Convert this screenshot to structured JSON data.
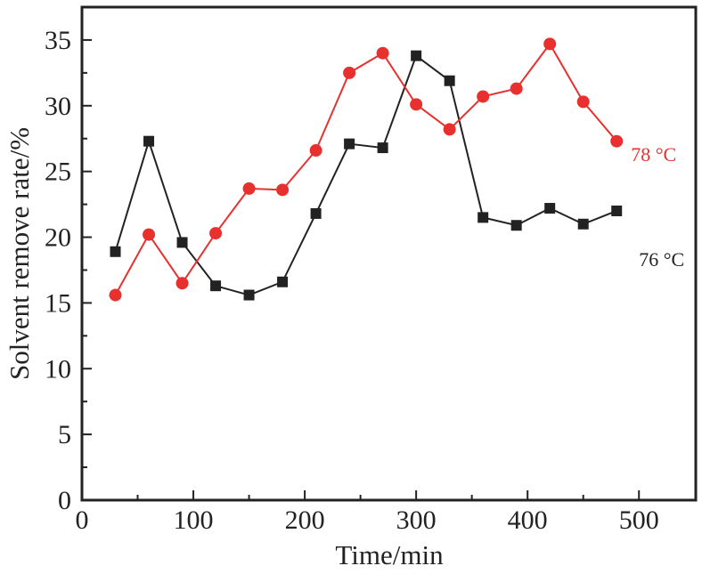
{
  "chart_data": {
    "type": "line",
    "title": "",
    "xlabel": "Time/min",
    "ylabel": "Solvent remove rate/%",
    "xlim": [
      0,
      551
    ],
    "ylim": [
      0,
      37.5
    ],
    "xticks": [
      0,
      100,
      200,
      300,
      400,
      500
    ],
    "xminor": [
      50,
      150,
      250,
      350,
      450
    ],
    "yticks": [
      0,
      5,
      10,
      15,
      20,
      25,
      30,
      35
    ],
    "yminor": [
      2.5,
      7.5,
      12.5,
      17.5,
      22.5,
      27.5,
      32.5
    ],
    "grid": false,
    "series": [
      {
        "name": "76 °C",
        "color": "#222222",
        "marker": "square",
        "x": [
          30,
          60,
          90,
          120,
          150,
          180,
          210,
          240,
          270,
          300,
          330,
          360,
          390,
          420,
          450,
          480
        ],
        "values": [
          18.9,
          27.3,
          19.6,
          16.3,
          15.6,
          16.6,
          21.8,
          27.1,
          26.8,
          33.8,
          31.9,
          21.5,
          20.9,
          22.2,
          21.0,
          22.0
        ]
      },
      {
        "name": "78 °C",
        "color": "#e8312f",
        "marker": "circle",
        "x": [
          30,
          60,
          90,
          120,
          150,
          180,
          210,
          240,
          270,
          300,
          330,
          360,
          390,
          420,
          450,
          480
        ],
        "values": [
          15.6,
          20.2,
          16.5,
          20.3,
          23.7,
          23.6,
          26.6,
          32.5,
          34.0,
          30.1,
          28.2,
          30.7,
          31.3,
          34.7,
          30.3,
          27.3
        ]
      }
    ],
    "annotations": [
      {
        "text": "78 °C",
        "series": "78 °C",
        "color": "#e8312f",
        "x": 480,
        "y": 25.8
      },
      {
        "text": "76 °C",
        "series": "76 °C",
        "color": "#222222",
        "x": 500,
        "y": 17.8
      }
    ]
  }
}
